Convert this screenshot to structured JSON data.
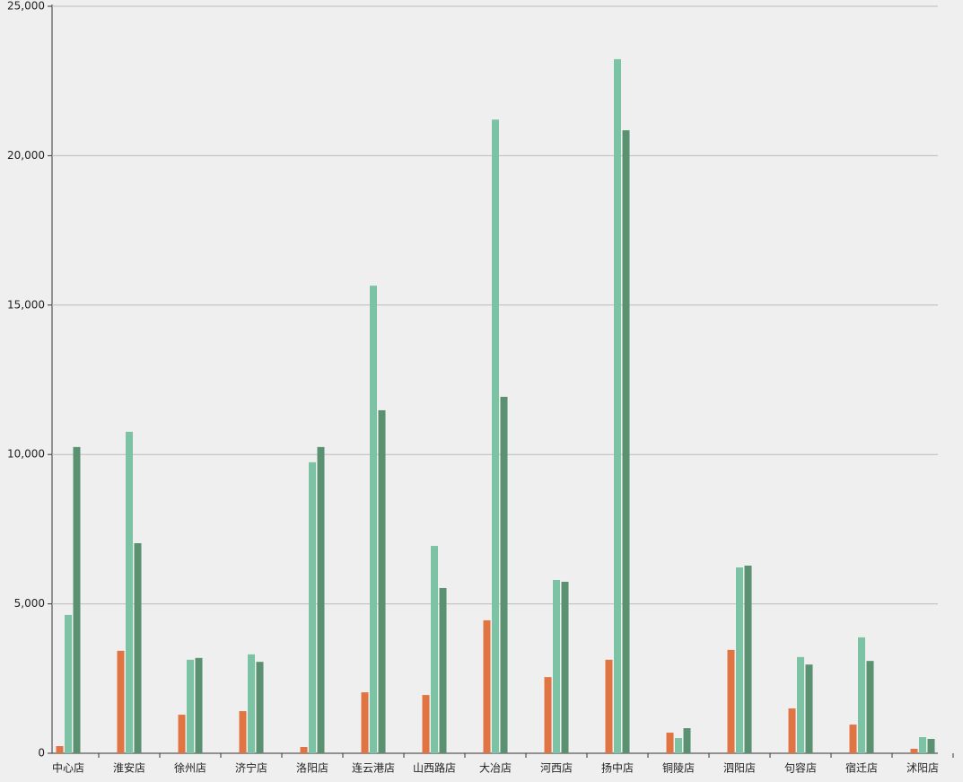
{
  "chart_data": {
    "type": "bar",
    "categories": [
      "中心店",
      "淮安店",
      "徐州店",
      "济宁店",
      "洛阳店",
      "连云港店",
      "山西路店",
      "大冶店",
      "河西店",
      "扬中店",
      "铜陵店",
      "泗阳店",
      "句容店",
      "宿迁店",
      "沭阳店"
    ],
    "series": [
      {
        "color": "#e07443",
        "values": [
          240,
          3430,
          1290,
          1410,
          210,
          2040,
          1950,
          4450,
          2550,
          3130,
          690,
          3460,
          1500,
          960,
          150
        ]
      },
      {
        "color": "#7cc3a5",
        "values": [
          4630,
          10760,
          3130,
          3310,
          9740,
          15650,
          6940,
          21210,
          5800,
          23230,
          510,
          6220,
          3220,
          3880,
          540
        ]
      },
      {
        "color": "#5a9271",
        "values": [
          10250,
          7030,
          3190,
          3060,
          10250,
          11480,
          5530,
          11930,
          5740,
          20850,
          840,
          6280,
          2970,
          3090,
          480
        ]
      }
    ],
    "ylim": [
      0,
      25000
    ],
    "yticks": [
      0,
      {
        "value": 5000,
        "label": "5,000"
      },
      {
        "value": 10000,
        "label": "10,000"
      },
      {
        "value": 15000,
        "label": "15,000"
      },
      {
        "value": 20000,
        "label": "20,000"
      },
      {
        "value": 25000,
        "label": "25,000"
      }
    ],
    "grid": true
  }
}
